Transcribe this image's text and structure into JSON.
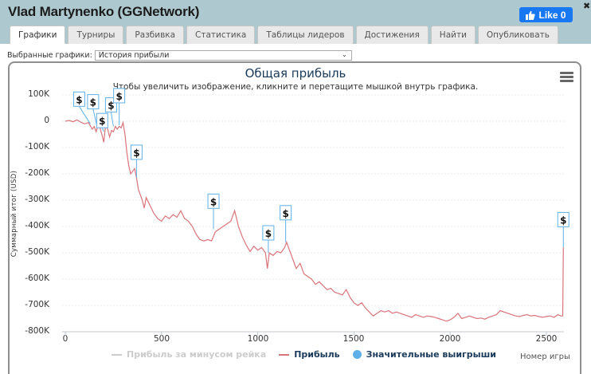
{
  "window": {
    "title": "Vlad Martynenko (GGNetwork)",
    "close_icon": "✖",
    "like_button": {
      "label": "Like 0",
      "icon": "thumbs-up-icon",
      "color": "#1877f2"
    }
  },
  "tabs": [
    {
      "label": "Графики",
      "active": true
    },
    {
      "label": "Турниры"
    },
    {
      "label": "Разбивка"
    },
    {
      "label": "Статистика"
    },
    {
      "label": "Таблицы лидеров"
    },
    {
      "label": "Достижения"
    },
    {
      "label": "Найти"
    },
    {
      "label": "Опубликовать"
    }
  ],
  "selector": {
    "label": "Выбранные графики:",
    "value": "История прибыли"
  },
  "chart_data": {
    "type": "line",
    "title": "Общая прибыль",
    "subtitle": "Чтобы увеличить изображение, кликните и перетащите мышкой внутрь графика.",
    "xlabel": "Номер игры",
    "ylabel": "Суммарный итог (USD)",
    "xlim": [
      0,
      2600
    ],
    "ylim": [
      -800000,
      100000
    ],
    "x_ticks": [
      "0",
      "500",
      "1000",
      "1500",
      "2000",
      "2500"
    ],
    "y_ticks": [
      "100K",
      "0",
      "-100K",
      "-200K",
      "-300K",
      "-400K",
      "-500K",
      "-600K",
      "-700K",
      "-800K"
    ],
    "grid": true,
    "legend_position": "bottom",
    "legend": [
      {
        "name": "Прибыль за минусом рейка",
        "color": "#cccccc",
        "marker": "line",
        "hidden": true
      },
      {
        "name": "Прибыль",
        "color": "#d9747a",
        "marker": "line"
      },
      {
        "name": "Значительные выигрыши",
        "color": "#5eb0e8",
        "marker": "dot"
      }
    ],
    "series": [
      {
        "name": "Прибыль",
        "color": "#d9747a",
        "points": [
          [
            0,
            0
          ],
          [
            20,
            3000
          ],
          [
            40,
            -2000
          ],
          [
            60,
            5000
          ],
          [
            80,
            -3000
          ],
          [
            100,
            -10000
          ],
          [
            120,
            -5000
          ],
          [
            140,
            -30000
          ],
          [
            150,
            -20000
          ],
          [
            160,
            -40000
          ],
          [
            170,
            -15000
          ],
          [
            180,
            -25000
          ],
          [
            190,
            -50000
          ],
          [
            200,
            -80000
          ],
          [
            210,
            -10000
          ],
          [
            220,
            -30000
          ],
          [
            230,
            -60000
          ],
          [
            240,
            -35000
          ],
          [
            250,
            -40000
          ],
          [
            260,
            -20000
          ],
          [
            270,
            -30000
          ],
          [
            280,
            -20000
          ],
          [
            290,
            -25000
          ],
          [
            300,
            -5000
          ],
          [
            310,
            -50000
          ],
          [
            320,
            -120000
          ],
          [
            330,
            -170000
          ],
          [
            340,
            -200000
          ],
          [
            350,
            -190000
          ],
          [
            360,
            -180000
          ],
          [
            370,
            -215000
          ],
          [
            380,
            -260000
          ],
          [
            400,
            -300000
          ],
          [
            410,
            -330000
          ],
          [
            420,
            -290000
          ],
          [
            440,
            -320000
          ],
          [
            460,
            -350000
          ],
          [
            480,
            -370000
          ],
          [
            500,
            -380000
          ],
          [
            520,
            -360000
          ],
          [
            540,
            -370000
          ],
          [
            560,
            -355000
          ],
          [
            580,
            -365000
          ],
          [
            600,
            -340000
          ],
          [
            620,
            -370000
          ],
          [
            640,
            -380000
          ],
          [
            660,
            -400000
          ],
          [
            680,
            -430000
          ],
          [
            700,
            -450000
          ],
          [
            720,
            -455000
          ],
          [
            740,
            -450000
          ],
          [
            760,
            -455000
          ],
          [
            780,
            -420000
          ],
          [
            800,
            -410000
          ],
          [
            820,
            -400000
          ],
          [
            840,
            -390000
          ],
          [
            860,
            -380000
          ],
          [
            880,
            -340000
          ],
          [
            900,
            -400000
          ],
          [
            920,
            -440000
          ],
          [
            940,
            -470000
          ],
          [
            960,
            -495000
          ],
          [
            980,
            -475000
          ],
          [
            1000,
            -490000
          ],
          [
            1020,
            -480000
          ],
          [
            1040,
            -500000
          ],
          [
            1050,
            -560000
          ],
          [
            1060,
            -500000
          ],
          [
            1080,
            -510000
          ],
          [
            1100,
            -495000
          ],
          [
            1120,
            -500000
          ],
          [
            1140,
            -480000
          ],
          [
            1150,
            -460000
          ],
          [
            1170,
            -500000
          ],
          [
            1190,
            -540000
          ],
          [
            1200,
            -560000
          ],
          [
            1220,
            -540000
          ],
          [
            1240,
            -580000
          ],
          [
            1260,
            -590000
          ],
          [
            1280,
            -600000
          ],
          [
            1300,
            -620000
          ],
          [
            1320,
            -610000
          ],
          [
            1340,
            -625000
          ],
          [
            1360,
            -640000
          ],
          [
            1380,
            -635000
          ],
          [
            1400,
            -650000
          ],
          [
            1420,
            -655000
          ],
          [
            1440,
            -660000
          ],
          [
            1460,
            -640000
          ],
          [
            1480,
            -670000
          ],
          [
            1500,
            -690000
          ],
          [
            1520,
            -700000
          ],
          [
            1540,
            -690000
          ],
          [
            1560,
            -710000
          ],
          [
            1580,
            -725000
          ],
          [
            1600,
            -740000
          ],
          [
            1620,
            -730000
          ],
          [
            1640,
            -720000
          ],
          [
            1660,
            -725000
          ],
          [
            1680,
            -720000
          ],
          [
            1700,
            -730000
          ],
          [
            1720,
            -725000
          ],
          [
            1740,
            -730000
          ],
          [
            1760,
            -735000
          ],
          [
            1780,
            -740000
          ],
          [
            1800,
            -745000
          ],
          [
            1820,
            -735000
          ],
          [
            1840,
            -740000
          ],
          [
            1860,
            -745000
          ],
          [
            1880,
            -740000
          ],
          [
            1900,
            -742000
          ],
          [
            1920,
            -745000
          ],
          [
            1940,
            -750000
          ],
          [
            1960,
            -755000
          ],
          [
            1980,
            -760000
          ],
          [
            2000,
            -755000
          ],
          [
            2020,
            -745000
          ],
          [
            2040,
            -730000
          ],
          [
            2060,
            -750000
          ],
          [
            2080,
            -745000
          ],
          [
            2100,
            -740000
          ],
          [
            2120,
            -745000
          ],
          [
            2140,
            -750000
          ],
          [
            2160,
            -748000
          ],
          [
            2180,
            -752000
          ],
          [
            2200,
            -745000
          ],
          [
            2220,
            -740000
          ],
          [
            2240,
            -735000
          ],
          [
            2260,
            -720000
          ],
          [
            2280,
            -725000
          ],
          [
            2300,
            -730000
          ],
          [
            2320,
            -735000
          ],
          [
            2340,
            -740000
          ],
          [
            2360,
            -742000
          ],
          [
            2380,
            -738000
          ],
          [
            2400,
            -735000
          ],
          [
            2420,
            -740000
          ],
          [
            2440,
            -738000
          ],
          [
            2460,
            -742000
          ],
          [
            2480,
            -745000
          ],
          [
            2500,
            -742000
          ],
          [
            2520,
            -740000
          ],
          [
            2540,
            -745000
          ],
          [
            2560,
            -735000
          ],
          [
            2575,
            -740000
          ],
          [
            2585,
            -740000
          ],
          [
            2588,
            -480000
          ]
        ]
      }
    ],
    "flags": [
      {
        "x": 130,
        "y": -10000,
        "label": "$"
      },
      {
        "x": 165,
        "y": -20000,
        "label": "$"
      },
      {
        "x": 200,
        "y": -40000,
        "label": "$"
      },
      {
        "x": 250,
        "y": -20000,
        "label": "$"
      },
      {
        "x": 280,
        "y": -15000,
        "label": "$"
      },
      {
        "x": 370,
        "y": -215000,
        "label": "$"
      },
      {
        "x": 770,
        "y": -410000,
        "label": "$"
      },
      {
        "x": 1055,
        "y": -500000,
        "label": "$"
      },
      {
        "x": 1145,
        "y": -460000,
        "label": "$"
      },
      {
        "x": 2588,
        "y": -480000,
        "label": "$"
      }
    ]
  }
}
